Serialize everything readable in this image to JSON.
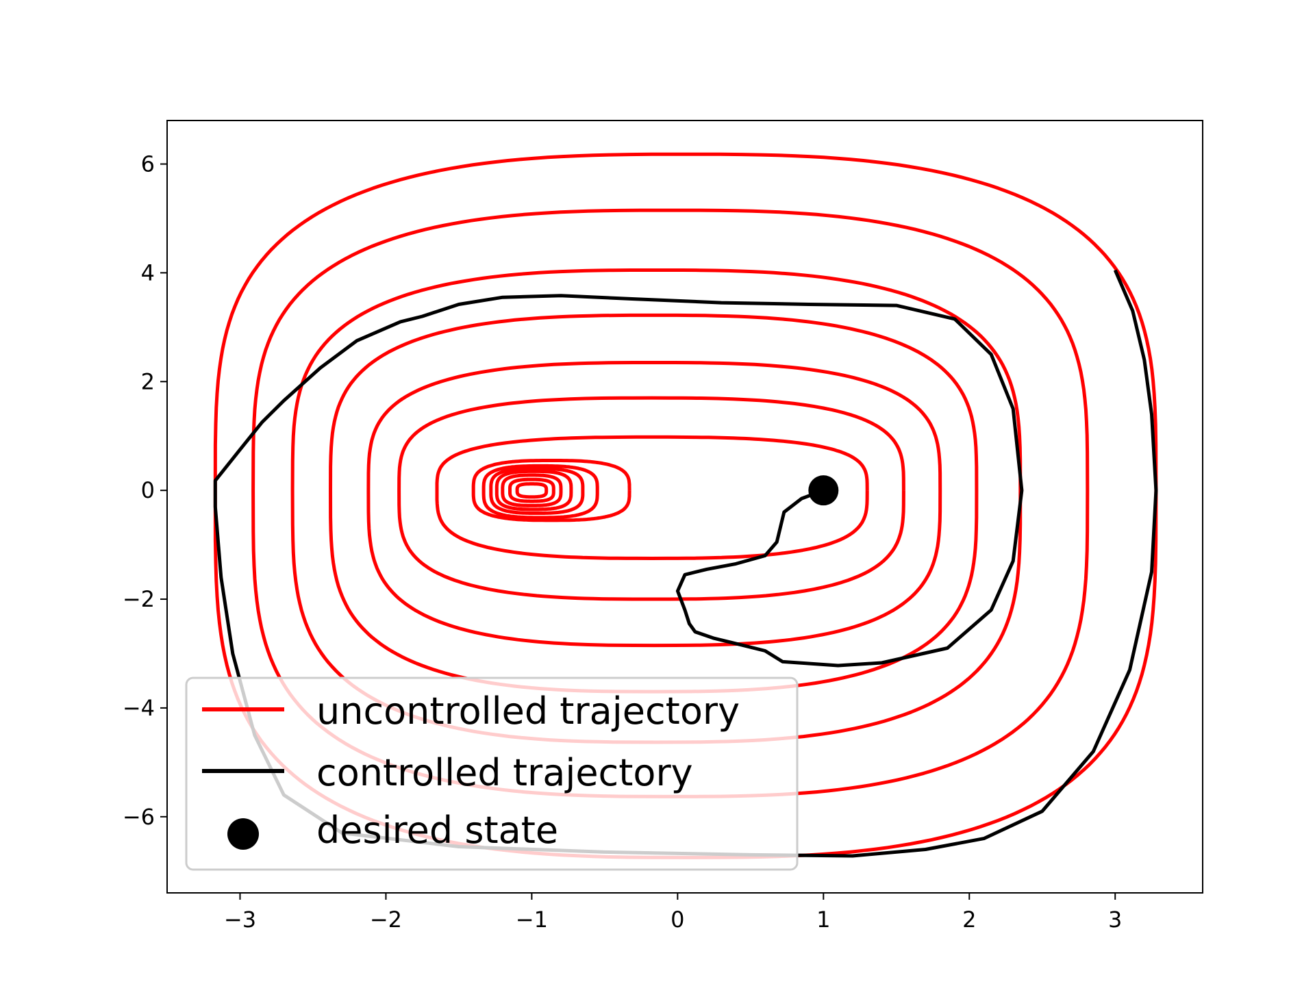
{
  "chart_data": {
    "type": "line",
    "title": "",
    "xlabel": "",
    "ylabel": "",
    "xlim": [
      -3.5,
      3.6
    ],
    "ylim": [
      -7.4,
      6.8
    ],
    "xticks": [
      -3,
      -2,
      -1,
      0,
      1,
      2,
      3
    ],
    "yticks": [
      -6,
      -4,
      -2,
      0,
      2,
      4,
      6
    ],
    "xtick_labels": [
      "−3",
      "−2",
      "−1",
      "0",
      "1",
      "2",
      "3"
    ],
    "ytick_labels": [
      "−6",
      "−4",
      "−2",
      "0",
      "2",
      "4",
      "6"
    ],
    "grid": false,
    "legend_position": "lower-left",
    "colors": {
      "uncontrolled": "#ff0000",
      "controlled": "#000000",
      "desired": "#000000"
    },
    "series": [
      {
        "name": "uncontrolled trajectory",
        "kind": "closed-orbits",
        "orbits": [
          {
            "x_left": -3.17,
            "x_right": 3.28,
            "y_max": 6.18,
            "y_min": -6.75
          },
          {
            "x_left": -2.91,
            "x_right": 2.81,
            "y_max": 5.15,
            "y_min": -5.63
          },
          {
            "x_left": -2.64,
            "x_right": 2.35,
            "y_max": 4.05,
            "y_min": -4.63
          },
          {
            "x_left": -2.38,
            "x_right": 2.05,
            "y_max": 3.22,
            "y_min": -3.7
          },
          {
            "x_left": -2.12,
            "x_right": 1.8,
            "y_max": 2.35,
            "y_min": -2.85
          },
          {
            "x_left": -1.91,
            "x_right": 1.55,
            "y_max": 1.7,
            "y_min": -2.0
          },
          {
            "x_left": -1.65,
            "x_right": 1.3,
            "y_max": 0.98,
            "y_min": -1.25
          },
          {
            "x_left": -1.4,
            "x_right": -0.33,
            "y_max": 0.55,
            "y_min": -0.55
          },
          {
            "x_left": -1.33,
            "x_right": -0.55,
            "y_max": 0.45,
            "y_min": -0.5
          },
          {
            "x_left": -1.28,
            "x_right": -0.65,
            "y_max": 0.4,
            "y_min": -0.42
          },
          {
            "x_left": -1.24,
            "x_right": -0.73,
            "y_max": 0.35,
            "y_min": -0.35
          },
          {
            "x_left": -1.2,
            "x_right": -0.8,
            "y_max": 0.28,
            "y_min": -0.28
          },
          {
            "x_left": -1.15,
            "x_right": -0.85,
            "y_max": 0.2,
            "y_min": -0.2
          },
          {
            "x_left": -1.1,
            "x_right": -0.9,
            "y_max": 0.12,
            "y_min": -0.12
          }
        ]
      },
      {
        "name": "controlled trajectory",
        "kind": "path",
        "points": [
          [
            3.0,
            4.05
          ],
          [
            3.12,
            3.3
          ],
          [
            3.2,
            2.4
          ],
          [
            3.25,
            1.4
          ],
          [
            3.28,
            0.0
          ],
          [
            3.25,
            -1.5
          ],
          [
            3.1,
            -3.3
          ],
          [
            2.85,
            -4.8
          ],
          [
            2.5,
            -5.9
          ],
          [
            2.1,
            -6.4
          ],
          [
            1.7,
            -6.6
          ],
          [
            1.2,
            -6.72
          ],
          [
            0.5,
            -6.7
          ],
          [
            -0.5,
            -6.65
          ],
          [
            -1.5,
            -6.55
          ],
          [
            -2.3,
            -6.3
          ],
          [
            -2.7,
            -5.6
          ],
          [
            -2.9,
            -4.5
          ],
          [
            -3.05,
            -3.0
          ],
          [
            -3.13,
            -1.6
          ],
          [
            -3.17,
            -0.3
          ],
          [
            -3.17,
            0.18
          ],
          [
            -3.0,
            0.75
          ],
          [
            -2.85,
            1.25
          ],
          [
            -2.7,
            1.65
          ],
          [
            -2.45,
            2.25
          ],
          [
            -2.2,
            2.75
          ],
          [
            -1.9,
            3.1
          ],
          [
            -1.75,
            3.2
          ],
          [
            -1.5,
            3.42
          ],
          [
            -1.2,
            3.55
          ],
          [
            -0.8,
            3.58
          ],
          [
            -0.3,
            3.52
          ],
          [
            0.3,
            3.45
          ],
          [
            0.9,
            3.42
          ],
          [
            1.5,
            3.4
          ],
          [
            1.9,
            3.15
          ],
          [
            2.15,
            2.5
          ],
          [
            2.3,
            1.5
          ],
          [
            2.36,
            0.0
          ],
          [
            2.3,
            -1.3
          ],
          [
            2.15,
            -2.2
          ],
          [
            1.85,
            -2.9
          ],
          [
            1.4,
            -3.17
          ],
          [
            1.1,
            -3.22
          ],
          [
            0.72,
            -3.15
          ],
          [
            0.6,
            -2.95
          ],
          [
            0.45,
            -2.85
          ],
          [
            0.25,
            -2.72
          ],
          [
            0.12,
            -2.6
          ],
          [
            0.08,
            -2.45
          ],
          [
            0.05,
            -2.2
          ],
          [
            0.0,
            -1.85
          ],
          [
            0.05,
            -1.55
          ],
          [
            0.2,
            -1.45
          ],
          [
            0.4,
            -1.35
          ],
          [
            0.6,
            -1.2
          ],
          [
            0.68,
            -0.95
          ],
          [
            0.73,
            -0.4
          ],
          [
            0.85,
            -0.15
          ],
          [
            1.0,
            0.0
          ]
        ]
      },
      {
        "name": "desired state",
        "kind": "point",
        "x": 1.0,
        "y": 0.0
      }
    ],
    "legend": [
      {
        "label": "uncontrolled trajectory",
        "marker": "line",
        "color": "#ff0000"
      },
      {
        "label": "controlled trajectory",
        "marker": "line",
        "color": "#000000"
      },
      {
        "label": "desired state",
        "marker": "dot",
        "color": "#000000"
      }
    ]
  }
}
